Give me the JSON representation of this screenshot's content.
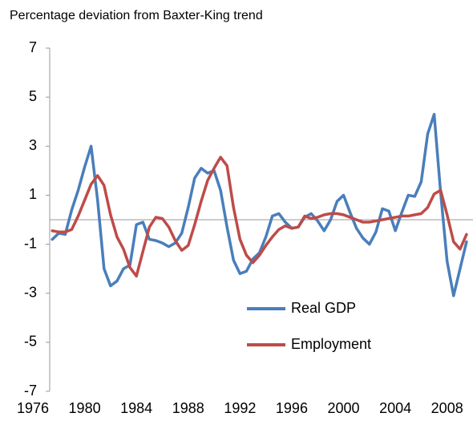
{
  "chart_data": {
    "type": "line",
    "title": "Percentage  deviation from Baxter-King trend",
    "x": [
      1977.5,
      1978,
      1978.5,
      1979,
      1979.5,
      1980,
      1980.5,
      1981,
      1981.5,
      1982,
      1982.5,
      1983,
      1983.5,
      1984,
      1984.5,
      1985,
      1985.5,
      1986,
      1986.5,
      1987,
      1987.5,
      1988,
      1988.5,
      1989,
      1989.5,
      1990,
      1990.5,
      1991,
      1991.5,
      1992,
      1992.5,
      1993,
      1993.5,
      1994,
      1994.5,
      1995,
      1995.5,
      1996,
      1996.5,
      1997,
      1997.5,
      1998,
      1998.5,
      1999,
      1999.5,
      2000,
      2000.5,
      2001,
      2001.5,
      2002,
      2002.5,
      2003,
      2003.5,
      2004,
      2004.5,
      2005,
      2005.5,
      2006,
      2006.5,
      2007,
      2007.5,
      2008,
      2008.5,
      2009,
      2009.5
    ],
    "series": [
      {
        "name": "Real GDP",
        "color": "#4a7ebb",
        "values": [
          -0.8,
          -0.55,
          -0.6,
          0.4,
          1.2,
          2.15,
          3.0,
          0.8,
          -2.0,
          -2.7,
          -2.5,
          -2.0,
          -1.85,
          -0.2,
          -0.1,
          -0.8,
          -0.85,
          -0.95,
          -1.1,
          -0.95,
          -0.55,
          0.5,
          1.7,
          2.1,
          1.9,
          2.0,
          1.2,
          -0.3,
          -1.65,
          -2.2,
          -2.1,
          -1.6,
          -1.35,
          -0.7,
          0.15,
          0.25,
          -0.1,
          -0.35,
          -0.3,
          0.1,
          0.25,
          -0.05,
          -0.45,
          0.0,
          0.75,
          1.0,
          0.3,
          -0.35,
          -0.75,
          -1.0,
          -0.5,
          0.45,
          0.35,
          -0.45,
          0.3,
          1.0,
          0.95,
          1.55,
          3.5,
          4.3,
          1.1,
          -1.7,
          -3.1,
          -2.0,
          -0.9
        ]
      },
      {
        "name": "Employment",
        "color": "#be4b48",
        "values": [
          -0.45,
          -0.5,
          -0.5,
          -0.4,
          0.15,
          0.8,
          1.45,
          1.8,
          1.4,
          0.2,
          -0.7,
          -1.2,
          -1.95,
          -2.3,
          -1.3,
          -0.3,
          0.1,
          0.05,
          -0.3,
          -0.85,
          -1.25,
          -1.05,
          -0.2,
          0.75,
          1.6,
          2.1,
          2.55,
          2.2,
          0.5,
          -0.8,
          -1.45,
          -1.75,
          -1.45,
          -1.05,
          -0.7,
          -0.4,
          -0.25,
          -0.35,
          -0.3,
          0.15,
          0.05,
          0.1,
          0.2,
          0.25,
          0.25,
          0.2,
          0.1,
          0.0,
          -0.1,
          -0.1,
          -0.05,
          0.0,
          0.05,
          0.1,
          0.15,
          0.15,
          0.2,
          0.25,
          0.5,
          1.05,
          1.2,
          0.2,
          -0.9,
          -1.2,
          -0.6
        ]
      }
    ],
    "xlim": [
      1974.7,
      2010
    ],
    "xticks": [
      1976,
      1980,
      1984,
      1988,
      1992,
      1996,
      2000,
      2004,
      2008
    ],
    "ylim": [
      -7,
      7
    ],
    "yticks": [
      7,
      5,
      3,
      1,
      -1,
      -3,
      -5,
      -7
    ],
    "legend": "lower center"
  }
}
